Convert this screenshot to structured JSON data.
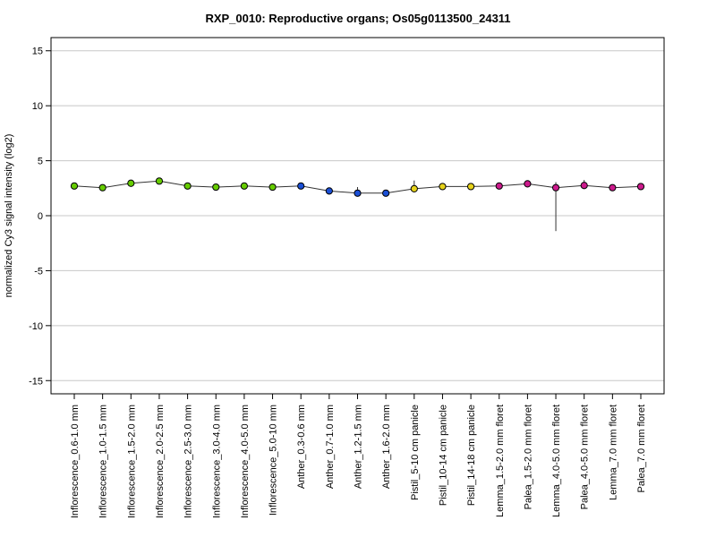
{
  "chart_data": {
    "type": "line",
    "title": "RXP_0010: Reproductive organs; Os05g0113500_24311",
    "xlabel": "",
    "ylabel": "normalized Cy3 signal intensity (log2)",
    "ylim": [
      -16.2,
      16.2
    ],
    "yticks": [
      -15,
      -10,
      -5,
      0,
      5,
      10,
      15
    ],
    "grid": "horizontal",
    "categories": [
      "Inflorescence_0.6-1.0 mm",
      "Inflorescence_1.0-1.5 mm",
      "Inflorescence_1.5-2.0 mm",
      "Inflorescence_2.0-2.5 mm",
      "Inflorescence_2.5-3.0 mm",
      "Inflorescence_3.0-4.0 mm",
      "Inflorescence_4.0-5.0 mm",
      "Inflorescence_5.0-10 mm",
      "Anther_0.3-0.6 mm",
      "Anther_0.7-1.0 mm",
      "Anther_1.2-1.5 mm",
      "Anther_1.6-2.0 mm",
      "Pistil_5-10 cm panicle",
      "Pistil_10-14 cm panicle",
      "Pistil_14-18 cm panicle",
      "Lemma_1.5-2.0 mm floret",
      "Palea_1.5-2.0 mm floret",
      "Lemma_4.0-5.0 mm floret",
      "Palea_4.0-5.0 mm floret",
      "Lemma_7.0 mm floret",
      "Palea_7.0 mm floret"
    ],
    "series": [
      {
        "values": [
          2.7,
          2.55,
          2.95,
          3.15,
          2.7,
          2.6,
          2.7,
          2.6,
          2.7,
          2.25,
          2.05,
          2.05,
          2.45,
          2.65,
          2.65,
          2.7,
          2.9,
          2.55,
          2.75,
          2.55,
          2.65
        ],
        "error_low": [
          2.6,
          2.45,
          2.85,
          3.05,
          2.6,
          2.5,
          2.6,
          2.5,
          2.4,
          2.15,
          1.8,
          1.85,
          2.2,
          2.55,
          2.55,
          2.6,
          2.75,
          -1.4,
          2.55,
          2.45,
          2.55
        ],
        "error_high": [
          2.8,
          2.65,
          3.05,
          3.25,
          2.8,
          2.7,
          2.8,
          2.7,
          3.0,
          2.35,
          2.6,
          2.3,
          3.2,
          2.75,
          2.75,
          2.8,
          3.05,
          3.05,
          3.25,
          2.65,
          2.75
        ],
        "colors": [
          "#66cc00",
          "#66cc00",
          "#66cc00",
          "#66cc00",
          "#66cc00",
          "#66cc00",
          "#66cc00",
          "#66cc00",
          "#1a4fd6",
          "#1a4fd6",
          "#1a4fd6",
          "#1a4fd6",
          "#e6d21a",
          "#e6d21a",
          "#e6d21a",
          "#cc1a8c",
          "#cc1a8c",
          "#cc1a8c",
          "#cc1a8c",
          "#cc1a8c",
          "#cc1a8c"
        ]
      }
    ]
  }
}
